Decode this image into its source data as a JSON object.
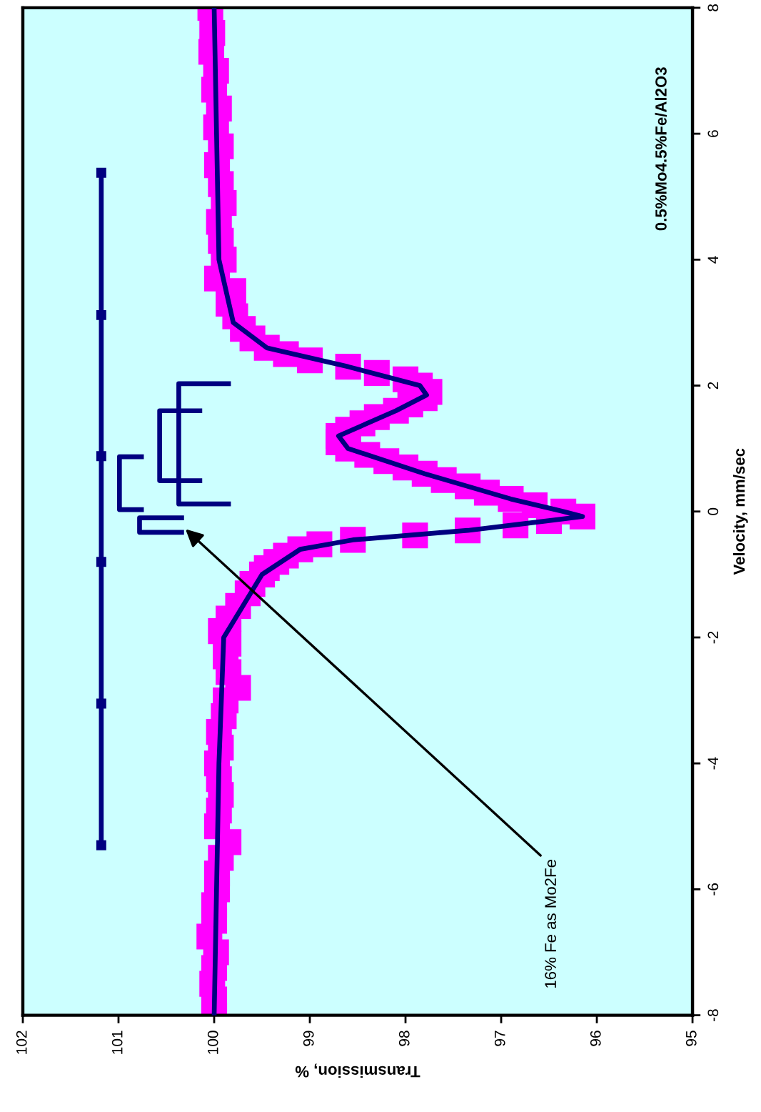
{
  "chart_data": {
    "type": "scatter",
    "xlabel": "Transmission, %",
    "ylabel": "Velocity, mm/sec",
    "xlim": [
      102,
      95
    ],
    "xticks": [
      102,
      101,
      100,
      99,
      98,
      97,
      96,
      95
    ],
    "ylim": [
      -8,
      8
    ],
    "yticks": [
      -8,
      -6,
      -4,
      -2,
      0,
      2,
      4,
      6,
      8
    ],
    "grid": false,
    "series": [
      {
        "type": "line",
        "color": "#000080",
        "marker": "none",
        "values": [
          8,
          4,
          3,
          2.6,
          2.3,
          2.0,
          1.85,
          1.6,
          1.2,
          1.0,
          0.6,
          0.2,
          0.0,
          -0.08,
          -0.2,
          -0.3,
          -0.45,
          -0.6,
          -1.0,
          -2.0,
          -4.0,
          -8
        ],
        "x": [
          100.0,
          99.95,
          99.8,
          99.45,
          98.6,
          97.85,
          97.78,
          98.1,
          98.7,
          98.6,
          97.8,
          96.9,
          96.35,
          96.15,
          96.8,
          97.35,
          98.55,
          99.1,
          99.5,
          99.9,
          99.95,
          100.0
        ]
      },
      {
        "color": "#ff00ff",
        "marker": "square",
        "values": [
          8.0,
          7.6,
          7.3,
          7.0,
          6.7,
          6.4,
          6.1,
          5.8,
          5.5,
          5.2,
          4.9,
          4.6,
          4.3,
          4.0,
          3.7,
          3.5,
          3.3,
          3.1,
          2.9,
          2.75,
          2.6,
          2.5,
          2.4,
          2.3,
          2.2,
          2.1,
          2.0,
          1.9,
          1.8,
          1.7,
          1.6,
          1.5,
          1.4,
          1.3,
          1.2,
          1.1,
          1.0,
          0.9,
          0.8,
          0.7,
          0.6,
          0.5,
          0.4,
          0.3,
          0.2,
          0.1,
          0.0,
          -0.08,
          -0.15,
          -0.22,
          -0.3,
          -0.38,
          -0.45,
          -0.52,
          -0.6,
          -0.7,
          -0.8,
          -0.9,
          -1.0,
          -1.15,
          -1.3,
          -1.5,
          -1.7,
          -1.9,
          -2.1,
          -2.3,
          -2.55,
          -2.8,
          -3.0,
          -3.25,
          -3.5,
          -3.75,
          -4.0,
          -4.25,
          -4.5,
          -4.75,
          -5.0,
          -5.25,
          -5.5,
          -5.75,
          -6.0,
          -6.25,
          -6.5,
          -6.75,
          -7.0,
          -7.25,
          -7.5,
          -7.75,
          -8.0
        ],
        "x": [
          100.04,
          100.02,
          100.03,
          99.98,
          100.0,
          99.95,
          99.98,
          99.93,
          99.97,
          99.93,
          99.9,
          99.95,
          99.93,
          99.9,
          99.97,
          99.8,
          99.85,
          99.78,
          99.7,
          99.6,
          99.45,
          99.25,
          99.0,
          98.6,
          98.3,
          98.0,
          97.85,
          97.75,
          97.8,
          97.95,
          98.1,
          98.3,
          98.45,
          98.6,
          98.7,
          98.7,
          98.6,
          98.4,
          98.2,
          98.0,
          97.8,
          97.6,
          97.35,
          97.15,
          96.9,
          96.65,
          96.35,
          96.15,
          96.5,
          96.85,
          97.35,
          97.9,
          98.55,
          98.9,
          99.1,
          99.25,
          99.35,
          99.45,
          99.5,
          99.6,
          99.65,
          99.75,
          99.85,
          99.93,
          99.85,
          99.88,
          99.85,
          99.75,
          99.88,
          99.9,
          99.95,
          99.93,
          99.97,
          99.95,
          99.93,
          99.95,
          99.97,
          99.85,
          99.93,
          99.97,
          99.97,
          100.0,
          100.0,
          100.05,
          99.98,
          100.0,
          100.02,
          100.0,
          100.0
        ]
      },
      {
        "type": "line",
        "color": "#000080",
        "marker": "square",
        "values": [
          -5.3,
          -3.05,
          -0.8,
          0.88,
          3.12,
          5.38
        ],
        "x": [
          101.18,
          101.18,
          101.18,
          101.18,
          101.18,
          101.18
        ]
      },
      {
        "type": "line",
        "color": "#000080",
        "marker": "none",
        "values": [
          0.12,
          0.12,
          2.03,
          2.03
        ],
        "x": [
          99.85,
          100.37,
          100.37,
          99.85
        ]
      },
      {
        "type": "line",
        "color": "#000080",
        "marker": "none",
        "values": [
          0.49,
          0.49,
          1.6,
          1.6
        ],
        "x": [
          100.15,
          100.57,
          100.57,
          100.15
        ]
      },
      {
        "type": "line",
        "color": "#000080",
        "marker": "none",
        "values": [
          0.03,
          0.03,
          0.87,
          0.87
        ],
        "x": [
          100.76,
          100.99,
          100.99,
          100.76
        ]
      },
      {
        "type": "line",
        "color": "#000080",
        "marker": "none",
        "values": [
          -0.1,
          -0.1,
          -0.33,
          -0.33
        ],
        "x": [
          100.34,
          100.78,
          100.78,
          100.34
        ]
      }
    ],
    "annotations": [
      "0.5%Mo4.5%Fe/Al2O3",
      {
        "text": "16% Fe as Mo2Fe",
        "x": 100.3,
        "y": -0.28
      }
    ]
  }
}
